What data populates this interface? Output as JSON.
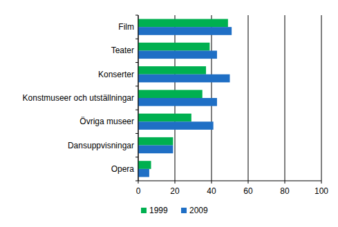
{
  "chart_data": {
    "type": "bar",
    "orientation": "horizontal",
    "categories": [
      "Film",
      "Teater",
      "Konserter",
      "Konstmuseer och utställningar",
      "Övriga museer",
      "Dansuppvisningar",
      "Opera"
    ],
    "series": [
      {
        "name": "1999",
        "color": "#00b050",
        "values": [
          49,
          39,
          37,
          35,
          29,
          19,
          7
        ]
      },
      {
        "name": "2009",
        "color": "#1f6fc5",
        "values": [
          51,
          43,
          50,
          43,
          41,
          19,
          6
        ]
      }
    ],
    "xlim": [
      0,
      100
    ],
    "xticks": [
      0,
      20,
      40,
      60,
      80,
      100
    ],
    "grid": true,
    "legend": "bottom"
  }
}
